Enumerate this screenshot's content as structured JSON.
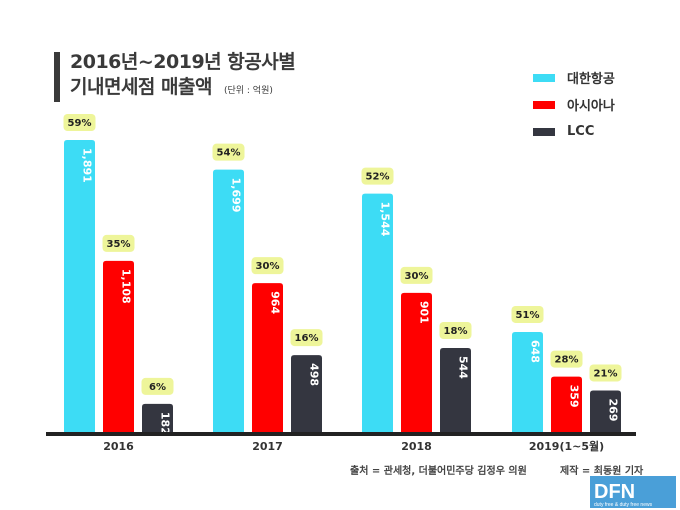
{
  "title": {
    "line1": "2016년~2019년 항공사별",
    "line2": "기내면세점 매출액",
    "unit": "(단위 : 억원)"
  },
  "legend": [
    {
      "label": "대한항공",
      "color": "#3ddcf5"
    },
    {
      "label": "아시아나",
      "color": "#ff0000"
    },
    {
      "label": "LCC",
      "color": "#343640"
    }
  ],
  "footer": {
    "source": "출처 = 관세청, 더불어민주당 김정우 의원",
    "credit": "제작 = 최동원 기자"
  },
  "logo": {
    "text": "DFN",
    "tagline": "duty free & duty free news"
  },
  "chart_data": {
    "type": "bar",
    "title": "2016년~2019년 항공사별 기내면세점 매출액",
    "ylabel": "매출액 (억원)",
    "xlabel": "",
    "ylim": [
      0,
      2000
    ],
    "grid": false,
    "legend_position": "top-right",
    "categories": [
      "2016",
      "2017",
      "2018",
      "2019(1~5월)"
    ],
    "series": [
      {
        "name": "대한항공",
        "color": "#3ddcf5",
        "values": [
          1891,
          1699,
          1544,
          648
        ],
        "labels": [
          "1,891",
          "1,699",
          "1,544",
          "648"
        ],
        "shares": [
          "59%",
          "54%",
          "52%",
          "51%"
        ]
      },
      {
        "name": "아시아나",
        "color": "#ff0000",
        "values": [
          1108,
          964,
          901,
          359
        ],
        "labels": [
          "1,108",
          "964",
          "901",
          "359"
        ],
        "shares": [
          "35%",
          "30%",
          "30%",
          "28%"
        ]
      },
      {
        "name": "LCC",
        "color": "#343640",
        "values": [
          182,
          498,
          544,
          269
        ],
        "labels": [
          "182",
          "498",
          "544",
          "269"
        ],
        "shares": [
          "6%",
          "16%",
          "18%",
          "21%"
        ]
      }
    ]
  }
}
